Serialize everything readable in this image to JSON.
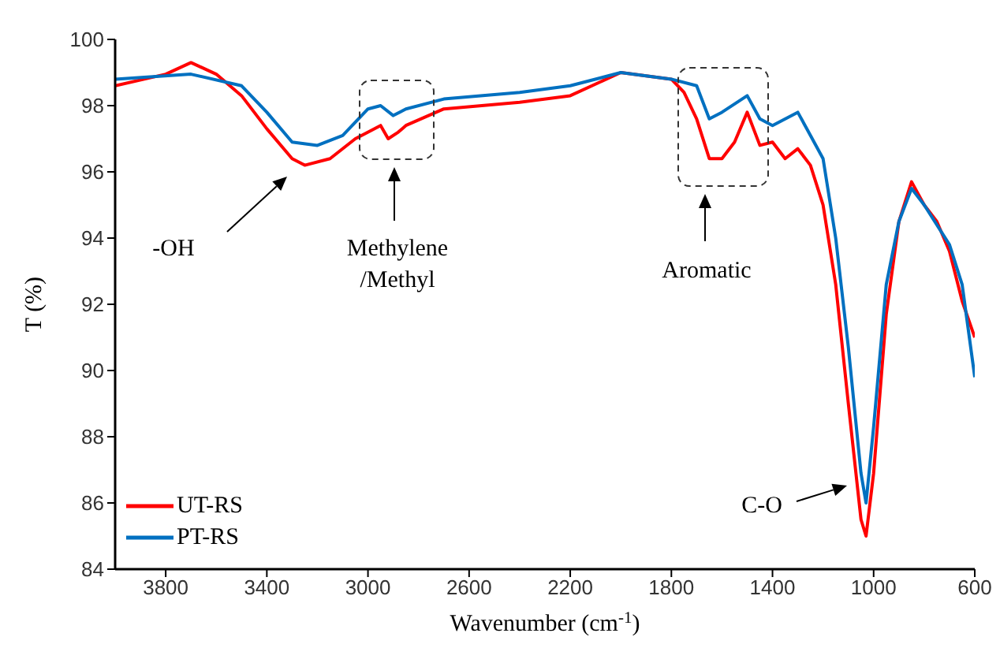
{
  "chart_data": {
    "type": "line",
    "xlabel": "Wavenumber (cm$^{-1}$)",
    "ylabel": "T (%)",
    "xlim": [
      4000,
      600
    ],
    "xticks": [
      3800,
      3400,
      3000,
      2600,
      2200,
      1800,
      1400,
      1000,
      600
    ],
    "ylim": [
      84,
      100
    ],
    "yticks": [
      84,
      86,
      88,
      90,
      92,
      94,
      96,
      98,
      100
    ],
    "grid": false,
    "legend": "bottom left",
    "marker": "none",
    "line_style": "solid",
    "annotations": [
      "-OH",
      "Methylene\n/Methyl",
      "Aromatic",
      "C-O"
    ],
    "series": [
      {
        "name": "UT-RS",
        "color": "#ff0000",
        "x": [
          4000,
          3800,
          3700,
          3600,
          3500,
          3400,
          3300,
          3250,
          3150,
          3050,
          2950,
          2920,
          2880,
          2850,
          2700,
          2400,
          2200,
          2000,
          1800,
          1750,
          1700,
          1650,
          1600,
          1550,
          1500,
          1450,
          1400,
          1350,
          1300,
          1250,
          1200,
          1150,
          1100,
          1050,
          1030,
          1000,
          950,
          900,
          850,
          800,
          750,
          700,
          650,
          600
        ],
        "values": [
          98.6,
          98.95,
          99.3,
          98.95,
          98.3,
          97.3,
          96.4,
          96.2,
          96.4,
          97.0,
          97.4,
          97.0,
          97.2,
          97.4,
          97.9,
          98.1,
          98.3,
          99.0,
          98.8,
          98.4,
          97.6,
          96.4,
          96.4,
          96.9,
          97.8,
          96.8,
          96.9,
          96.4,
          96.7,
          96.2,
          95.0,
          92.6,
          89.0,
          85.5,
          85.0,
          86.9,
          91.7,
          94.5,
          95.7,
          95.0,
          94.5,
          93.6,
          92.1,
          91.0
        ]
      },
      {
        "name": "PT-RS",
        "color": "#0070c0",
        "x": [
          4000,
          3700,
          3500,
          3400,
          3300,
          3200,
          3100,
          3000,
          2950,
          2900,
          2850,
          2700,
          2400,
          2200,
          2000,
          1800,
          1700,
          1650,
          1600,
          1500,
          1450,
          1400,
          1300,
          1250,
          1200,
          1150,
          1100,
          1050,
          1030,
          1000,
          950,
          900,
          850,
          800,
          700,
          650,
          600
        ],
        "values": [
          98.8,
          98.95,
          98.6,
          97.8,
          96.9,
          96.8,
          97.1,
          97.9,
          98.0,
          97.7,
          97.9,
          98.2,
          98.4,
          98.6,
          99.0,
          98.8,
          98.6,
          97.6,
          97.8,
          98.3,
          97.6,
          97.4,
          97.8,
          97.1,
          96.4,
          94.0,
          90.7,
          86.9,
          86.0,
          88.3,
          92.6,
          94.5,
          95.5,
          95.0,
          93.8,
          92.6,
          89.8
        ]
      }
    ]
  }
}
